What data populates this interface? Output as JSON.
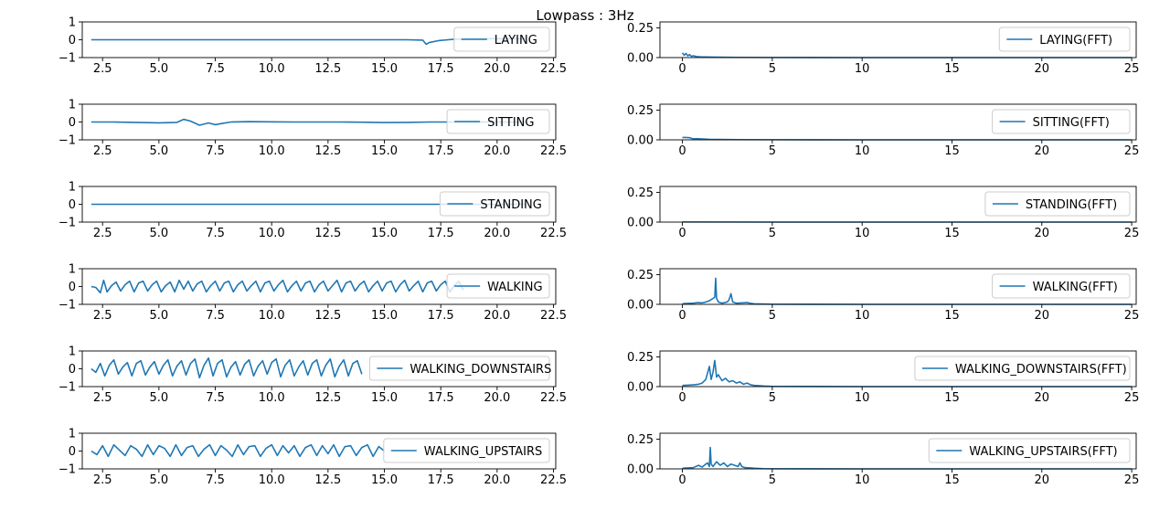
{
  "title": "Lowpass : 3Hz",
  "line_color": "#1f77b4",
  "chart_data": [
    {
      "type": "line",
      "legend": "LAYING",
      "xlim": [
        1.6,
        22.6
      ],
      "ylim": [
        -1,
        1
      ],
      "x_ticks": [
        "2.5",
        "5.0",
        "7.5",
        "10.0",
        "12.5",
        "15.0",
        "17.5",
        "20.0",
        "22.5"
      ],
      "y_ticks": [
        "1",
        "0",
        "−1"
      ],
      "series": [
        {
          "name": "LAYING",
          "x": [
            2,
            4,
            6,
            8,
            10,
            12,
            14,
            16,
            16.7,
            16.85,
            17.0,
            17.4,
            18,
            19,
            20,
            21.3
          ],
          "y": [
            0,
            0,
            0,
            0,
            0,
            0,
            0,
            0,
            -0.02,
            -0.25,
            -0.15,
            -0.05,
            0.02,
            0.05,
            0.06,
            0.05
          ]
        }
      ]
    },
    {
      "type": "line",
      "legend": "LAYING(FFT)",
      "xlim": [
        -1.25,
        25.25
      ],
      "ylim": [
        0,
        0.3
      ],
      "x_ticks": [
        "0",
        "5",
        "10",
        "15",
        "20",
        "25"
      ],
      "y_ticks": [
        "0.25",
        "0.00"
      ],
      "series": [
        {
          "name": "LAYING(FFT)",
          "x": [
            0,
            0.1,
            0.2,
            0.3,
            0.4,
            0.5,
            0.6,
            0.8,
            1.0,
            1.5,
            2.0,
            3.0,
            5.0,
            10,
            15,
            20,
            25
          ],
          "y": [
            0.04,
            0.02,
            0.035,
            0.015,
            0.025,
            0.01,
            0.015,
            0.008,
            0.006,
            0.004,
            0.003,
            0.002,
            0.001,
            0,
            0,
            0,
            0
          ]
        }
      ]
    },
    {
      "type": "line",
      "legend": "SITTING",
      "xlim": [
        1.6,
        22.6
      ],
      "ylim": [
        -1,
        1
      ],
      "x_ticks": [
        "2.5",
        "5.0",
        "7.5",
        "10.0",
        "12.5",
        "15.0",
        "17.5",
        "20.0",
        "22.5"
      ],
      "y_ticks": [
        "1",
        "0",
        "−1"
      ],
      "series": [
        {
          "name": "SITTING",
          "x": [
            2,
            3,
            4,
            5,
            5.8,
            6.1,
            6.4,
            6.8,
            7.2,
            7.5,
            7.8,
            8.2,
            9,
            10,
            11,
            12,
            13,
            14,
            15,
            16,
            17,
            18,
            19,
            20,
            21.3
          ],
          "y": [
            0,
            0,
            -0.02,
            -0.05,
            -0.02,
            0.15,
            0.05,
            -0.18,
            -0.05,
            -0.15,
            -0.08,
            0,
            0.02,
            0.01,
            0,
            0,
            0,
            -0.01,
            -0.03,
            -0.02,
            0,
            0,
            0,
            0,
            0
          ]
        }
      ]
    },
    {
      "type": "line",
      "legend": "SITTING(FFT)",
      "xlim": [
        -1.25,
        25.25
      ],
      "ylim": [
        0,
        0.3
      ],
      "x_ticks": [
        "0",
        "5",
        "10",
        "15",
        "20",
        "25"
      ],
      "y_ticks": [
        "0.25",
        "0.00"
      ],
      "series": [
        {
          "name": "SITTING(FFT)",
          "x": [
            0,
            0.2,
            0.4,
            0.6,
            0.8,
            1.0,
            1.5,
            2.0,
            3.0,
            5.0,
            10,
            15,
            20,
            25
          ],
          "y": [
            0.02,
            0.02,
            0.018,
            0.008,
            0.01,
            0.008,
            0.004,
            0.003,
            0.002,
            0.001,
            0,
            0,
            0,
            0
          ]
        }
      ]
    },
    {
      "type": "line",
      "legend": "STANDING",
      "xlim": [
        1.6,
        22.6
      ],
      "ylim": [
        -1,
        1
      ],
      "x_ticks": [
        "2.5",
        "5.0",
        "7.5",
        "10.0",
        "12.5",
        "15.0",
        "17.5",
        "20.0",
        "22.5"
      ],
      "y_ticks": [
        "1",
        "0",
        "−1"
      ],
      "series": [
        {
          "name": "STANDING",
          "x": [
            2,
            5,
            10,
            15,
            20,
            21.3
          ],
          "y": [
            0,
            0,
            0,
            0,
            0,
            0
          ]
        }
      ]
    },
    {
      "type": "line",
      "legend": "STANDING(FFT)",
      "xlim": [
        -1.25,
        25.25
      ],
      "ylim": [
        0,
        0.3
      ],
      "x_ticks": [
        "0",
        "5",
        "10",
        "15",
        "20",
        "25"
      ],
      "y_ticks": [
        "0.25",
        "0.00"
      ],
      "series": [
        {
          "name": "STANDING(FFT)",
          "x": [
            0,
            0.2,
            1,
            5,
            10,
            15,
            20,
            25
          ],
          "y": [
            0.002,
            0.001,
            0.001,
            0,
            0,
            0,
            0,
            0
          ]
        }
      ]
    },
    {
      "type": "line",
      "legend": "WALKING",
      "xlim": [
        1.6,
        22.6
      ],
      "ylim": [
        -1,
        1
      ],
      "x_ticks": [
        "2.5",
        "5.0",
        "7.5",
        "10.0",
        "12.5",
        "15.0",
        "17.5",
        "20.0",
        "22.5"
      ],
      "y_ticks": [
        "1",
        "0",
        "−1"
      ],
      "series": [
        {
          "name": "WALKING",
          "x": [
            2,
            2.2,
            2.4,
            2.55,
            2.7,
            2.9,
            3.1,
            3.3,
            3.5,
            3.7,
            3.9,
            4.1,
            4.3,
            4.5,
            4.7,
            4.9,
            5.1,
            5.3,
            5.5,
            5.7,
            5.9,
            6.1,
            6.3,
            6.5,
            6.7,
            6.9,
            7.1,
            7.3,
            7.5,
            7.7,
            7.9,
            8.1,
            8.3,
            8.5,
            8.7,
            8.9,
            9.1,
            9.3,
            9.5,
            9.7,
            9.9,
            10.1,
            10.3,
            10.5,
            10.7,
            10.9,
            11.1,
            11.3,
            11.5,
            11.7,
            11.9,
            12.1,
            12.3,
            12.5,
            12.7,
            12.9,
            13.1,
            13.3,
            13.5,
            13.7,
            13.9,
            14.1,
            14.3,
            14.5,
            14.7,
            14.9,
            15.1,
            15.3,
            15.5,
            15.7,
            15.9,
            16.1,
            16.3,
            16.5,
            16.7,
            16.9,
            17.1,
            17.3,
            17.5,
            17.7,
            17.9,
            18.1,
            18.3,
            18.5
          ],
          "y": [
            0,
            -0.05,
            -0.35,
            0.35,
            -0.3,
            0.05,
            0.25,
            -0.25,
            0.1,
            0.3,
            -0.3,
            0.2,
            0.3,
            -0.25,
            0.1,
            0.3,
            -0.3,
            0.05,
            0.25,
            -0.3,
            0.35,
            -0.15,
            0.3,
            -0.25,
            0.15,
            0.3,
            -0.3,
            0.05,
            0.3,
            -0.25,
            0.2,
            0.3,
            -0.3,
            0.1,
            0.3,
            -0.25,
            0.05,
            0.3,
            -0.3,
            0.2,
            0.3,
            -0.25,
            0.1,
            0.35,
            -0.3,
            0.05,
            0.3,
            -0.25,
            0.2,
            0.3,
            -0.3,
            0.1,
            0.3,
            -0.25,
            0.05,
            0.35,
            -0.3,
            0.2,
            0.3,
            -0.25,
            0.1,
            0.3,
            -0.3,
            0.05,
            0.3,
            -0.25,
            0.2,
            0.3,
            -0.3,
            0.1,
            0.35,
            -0.25,
            0.05,
            0.3,
            -0.3,
            0.2,
            0.3,
            -0.25,
            0.1,
            0.3,
            -0.3,
            0.05,
            0.3,
            -0.2
          ]
        }
      ]
    },
    {
      "type": "line",
      "legend": "WALKING(FFT)",
      "xlim": [
        -1.25,
        25.25
      ],
      "ylim": [
        0,
        0.3
      ],
      "x_ticks": [
        "0",
        "5",
        "10",
        "15",
        "20",
        "25"
      ],
      "y_ticks": [
        "0.25",
        "0.00"
      ],
      "series": [
        {
          "name": "WALKING(FFT)",
          "x": [
            0,
            0.3,
            0.6,
            0.9,
            1.0,
            1.2,
            1.5,
            1.7,
            1.8,
            1.85,
            1.9,
            2.0,
            2.2,
            2.5,
            2.6,
            2.7,
            2.8,
            3.0,
            3.3,
            3.6,
            3.8,
            4.0,
            5.0,
            10,
            15,
            20,
            25
          ],
          "y": [
            0.005,
            0.008,
            0.01,
            0.015,
            0.012,
            0.015,
            0.03,
            0.05,
            0.06,
            0.22,
            0.05,
            0.02,
            0.01,
            0.02,
            0.04,
            0.09,
            0.02,
            0.01,
            0.012,
            0.015,
            0.008,
            0.004,
            0.001,
            0,
            0,
            0,
            0
          ]
        }
      ]
    },
    {
      "type": "line",
      "legend": "WALKING_DOWNSTAIRS",
      "xlim": [
        1.6,
        22.6
      ],
      "ylim": [
        -1,
        1
      ],
      "x_ticks": [
        "2.5",
        "5.0",
        "7.5",
        "10.0",
        "12.5",
        "15.0",
        "17.5",
        "20.0",
        "22.5"
      ],
      "y_ticks": [
        "1",
        "0",
        "−1"
      ],
      "series": [
        {
          "name": "WALKING_DOWNSTAIRS",
          "x": [
            2,
            2.2,
            2.4,
            2.6,
            2.8,
            3.0,
            3.2,
            3.4,
            3.6,
            3.8,
            4.0,
            4.2,
            4.4,
            4.6,
            4.8,
            5.0,
            5.2,
            5.4,
            5.6,
            5.8,
            6.0,
            6.2,
            6.4,
            6.6,
            6.8,
            7.0,
            7.2,
            7.4,
            7.6,
            7.8,
            8.0,
            8.2,
            8.4,
            8.6,
            8.8,
            9.0,
            9.2,
            9.4,
            9.6,
            9.8,
            10.0,
            10.2,
            10.4,
            10.6,
            10.8,
            11.0,
            11.2,
            11.4,
            11.6,
            11.8,
            12.0,
            12.2,
            12.4,
            12.6,
            12.8,
            13.0,
            13.2,
            13.4,
            13.6,
            13.8,
            14.0
          ],
          "y": [
            0,
            -0.2,
            0.3,
            -0.4,
            0.2,
            0.5,
            -0.3,
            0.1,
            0.35,
            -0.4,
            0.3,
            0.45,
            -0.35,
            0.1,
            0.4,
            -0.3,
            0.2,
            0.5,
            -0.4,
            0.15,
            0.45,
            -0.35,
            0.3,
            0.55,
            -0.5,
            0.2,
            0.6,
            -0.4,
            0.3,
            0.5,
            -0.45,
            0.1,
            0.4,
            -0.35,
            0.25,
            0.5,
            -0.4,
            0.15,
            0.45,
            -0.3,
            0.35,
            0.55,
            -0.45,
            0.2,
            0.5,
            -0.4,
            0.1,
            0.45,
            -0.35,
            0.3,
            0.5,
            -0.4,
            0.2,
            0.55,
            -0.45,
            0.15,
            0.5,
            -0.4,
            0.3,
            0.45,
            -0.3
          ]
        }
      ]
    },
    {
      "type": "line",
      "legend": "WALKING_DOWNSTAIRS(FFT)",
      "xlim": [
        -1.25,
        25.25
      ],
      "ylim": [
        0,
        0.3
      ],
      "x_ticks": [
        "0",
        "5",
        "10",
        "15",
        "20",
        "25"
      ],
      "y_ticks": [
        "0.25",
        "0.00"
      ],
      "series": [
        {
          "name": "WALKING_DOWNSTAIRS(FFT)",
          "x": [
            0,
            0.3,
            0.6,
            0.9,
            1.1,
            1.3,
            1.5,
            1.6,
            1.7,
            1.8,
            1.9,
            2.0,
            2.2,
            2.4,
            2.6,
            2.8,
            3.0,
            3.2,
            3.4,
            3.6,
            3.8,
            4.0,
            4.5,
            5.0,
            10,
            15,
            20,
            25
          ],
          "y": [
            0.01,
            0.012,
            0.015,
            0.02,
            0.03,
            0.06,
            0.17,
            0.06,
            0.12,
            0.22,
            0.08,
            0.1,
            0.05,
            0.07,
            0.04,
            0.05,
            0.03,
            0.04,
            0.02,
            0.03,
            0.015,
            0.01,
            0.005,
            0.002,
            0,
            0,
            0,
            0
          ]
        }
      ]
    },
    {
      "type": "line",
      "legend": "WALKING_UPSTAIRS",
      "xlim": [
        1.6,
        22.6
      ],
      "ylim": [
        -1,
        1
      ],
      "x_ticks": [
        "2.5",
        "5.0",
        "7.5",
        "10.0",
        "12.5",
        "15.0",
        "17.5",
        "20.0",
        "22.5"
      ],
      "y_ticks": [
        "1",
        "0",
        "−1"
      ],
      "series": [
        {
          "name": "WALKING_UPSTAIRS",
          "x": [
            2,
            2.25,
            2.5,
            2.75,
            3.0,
            3.25,
            3.5,
            3.75,
            4.0,
            4.25,
            4.5,
            4.75,
            5.0,
            5.25,
            5.5,
            5.75,
            6.0,
            6.25,
            6.5,
            6.75,
            7.0,
            7.25,
            7.5,
            7.75,
            8.0,
            8.25,
            8.5,
            8.75,
            9.0,
            9.25,
            9.5,
            9.75,
            10.0,
            10.25,
            10.5,
            10.75,
            11.0,
            11.25,
            11.5,
            11.75,
            12.0,
            12.25,
            12.5,
            12.75,
            13.0,
            13.25,
            13.5,
            13.75,
            14.0,
            14.25,
            14.5,
            14.75,
            15.0
          ],
          "y": [
            0,
            -0.2,
            0.3,
            -0.3,
            0.35,
            0.05,
            -0.25,
            0.3,
            0.1,
            -0.3,
            0.35,
            -0.2,
            0.3,
            0.15,
            -0.3,
            0.35,
            -0.25,
            0.2,
            0.3,
            -0.3,
            0.1,
            0.35,
            -0.25,
            0.3,
            0.05,
            -0.3,
            0.35,
            -0.2,
            0.25,
            0.3,
            -0.3,
            0.15,
            0.35,
            -0.25,
            0.3,
            -0.1,
            0.3,
            -0.3,
            0.2,
            0.35,
            -0.25,
            0.3,
            -0.15,
            0.35,
            -0.3,
            0.25,
            0.3,
            -0.25,
            0.2,
            0.35,
            -0.3,
            0.25,
            0
          ]
        }
      ]
    },
    {
      "type": "line",
      "legend": "WALKING_UPSTAIRS(FFT)",
      "xlim": [
        -1.25,
        25.25
      ],
      "ylim": [
        0,
        0.3
      ],
      "x_ticks": [
        "0",
        "5",
        "10",
        "15",
        "20",
        "25"
      ],
      "y_ticks": [
        "0.25",
        "0.00"
      ],
      "series": [
        {
          "name": "WALKING_UPSTAIRS(FFT)",
          "x": [
            0,
            0.3,
            0.6,
            0.9,
            1.1,
            1.3,
            1.4,
            1.5,
            1.55,
            1.6,
            1.7,
            1.9,
            2.1,
            2.3,
            2.5,
            2.7,
            2.9,
            3.1,
            3.2,
            3.3,
            3.5,
            3.8,
            4.0,
            4.5,
            5.0,
            10,
            15,
            20,
            25
          ],
          "y": [
            0.005,
            0.008,
            0.01,
            0.03,
            0.015,
            0.04,
            0.05,
            0.02,
            0.18,
            0.04,
            0.02,
            0.06,
            0.03,
            0.05,
            0.02,
            0.04,
            0.03,
            0.02,
            0.05,
            0.02,
            0.01,
            0.008,
            0.005,
            0.002,
            0.001,
            0,
            0,
            0,
            0
          ]
        }
      ]
    }
  ]
}
